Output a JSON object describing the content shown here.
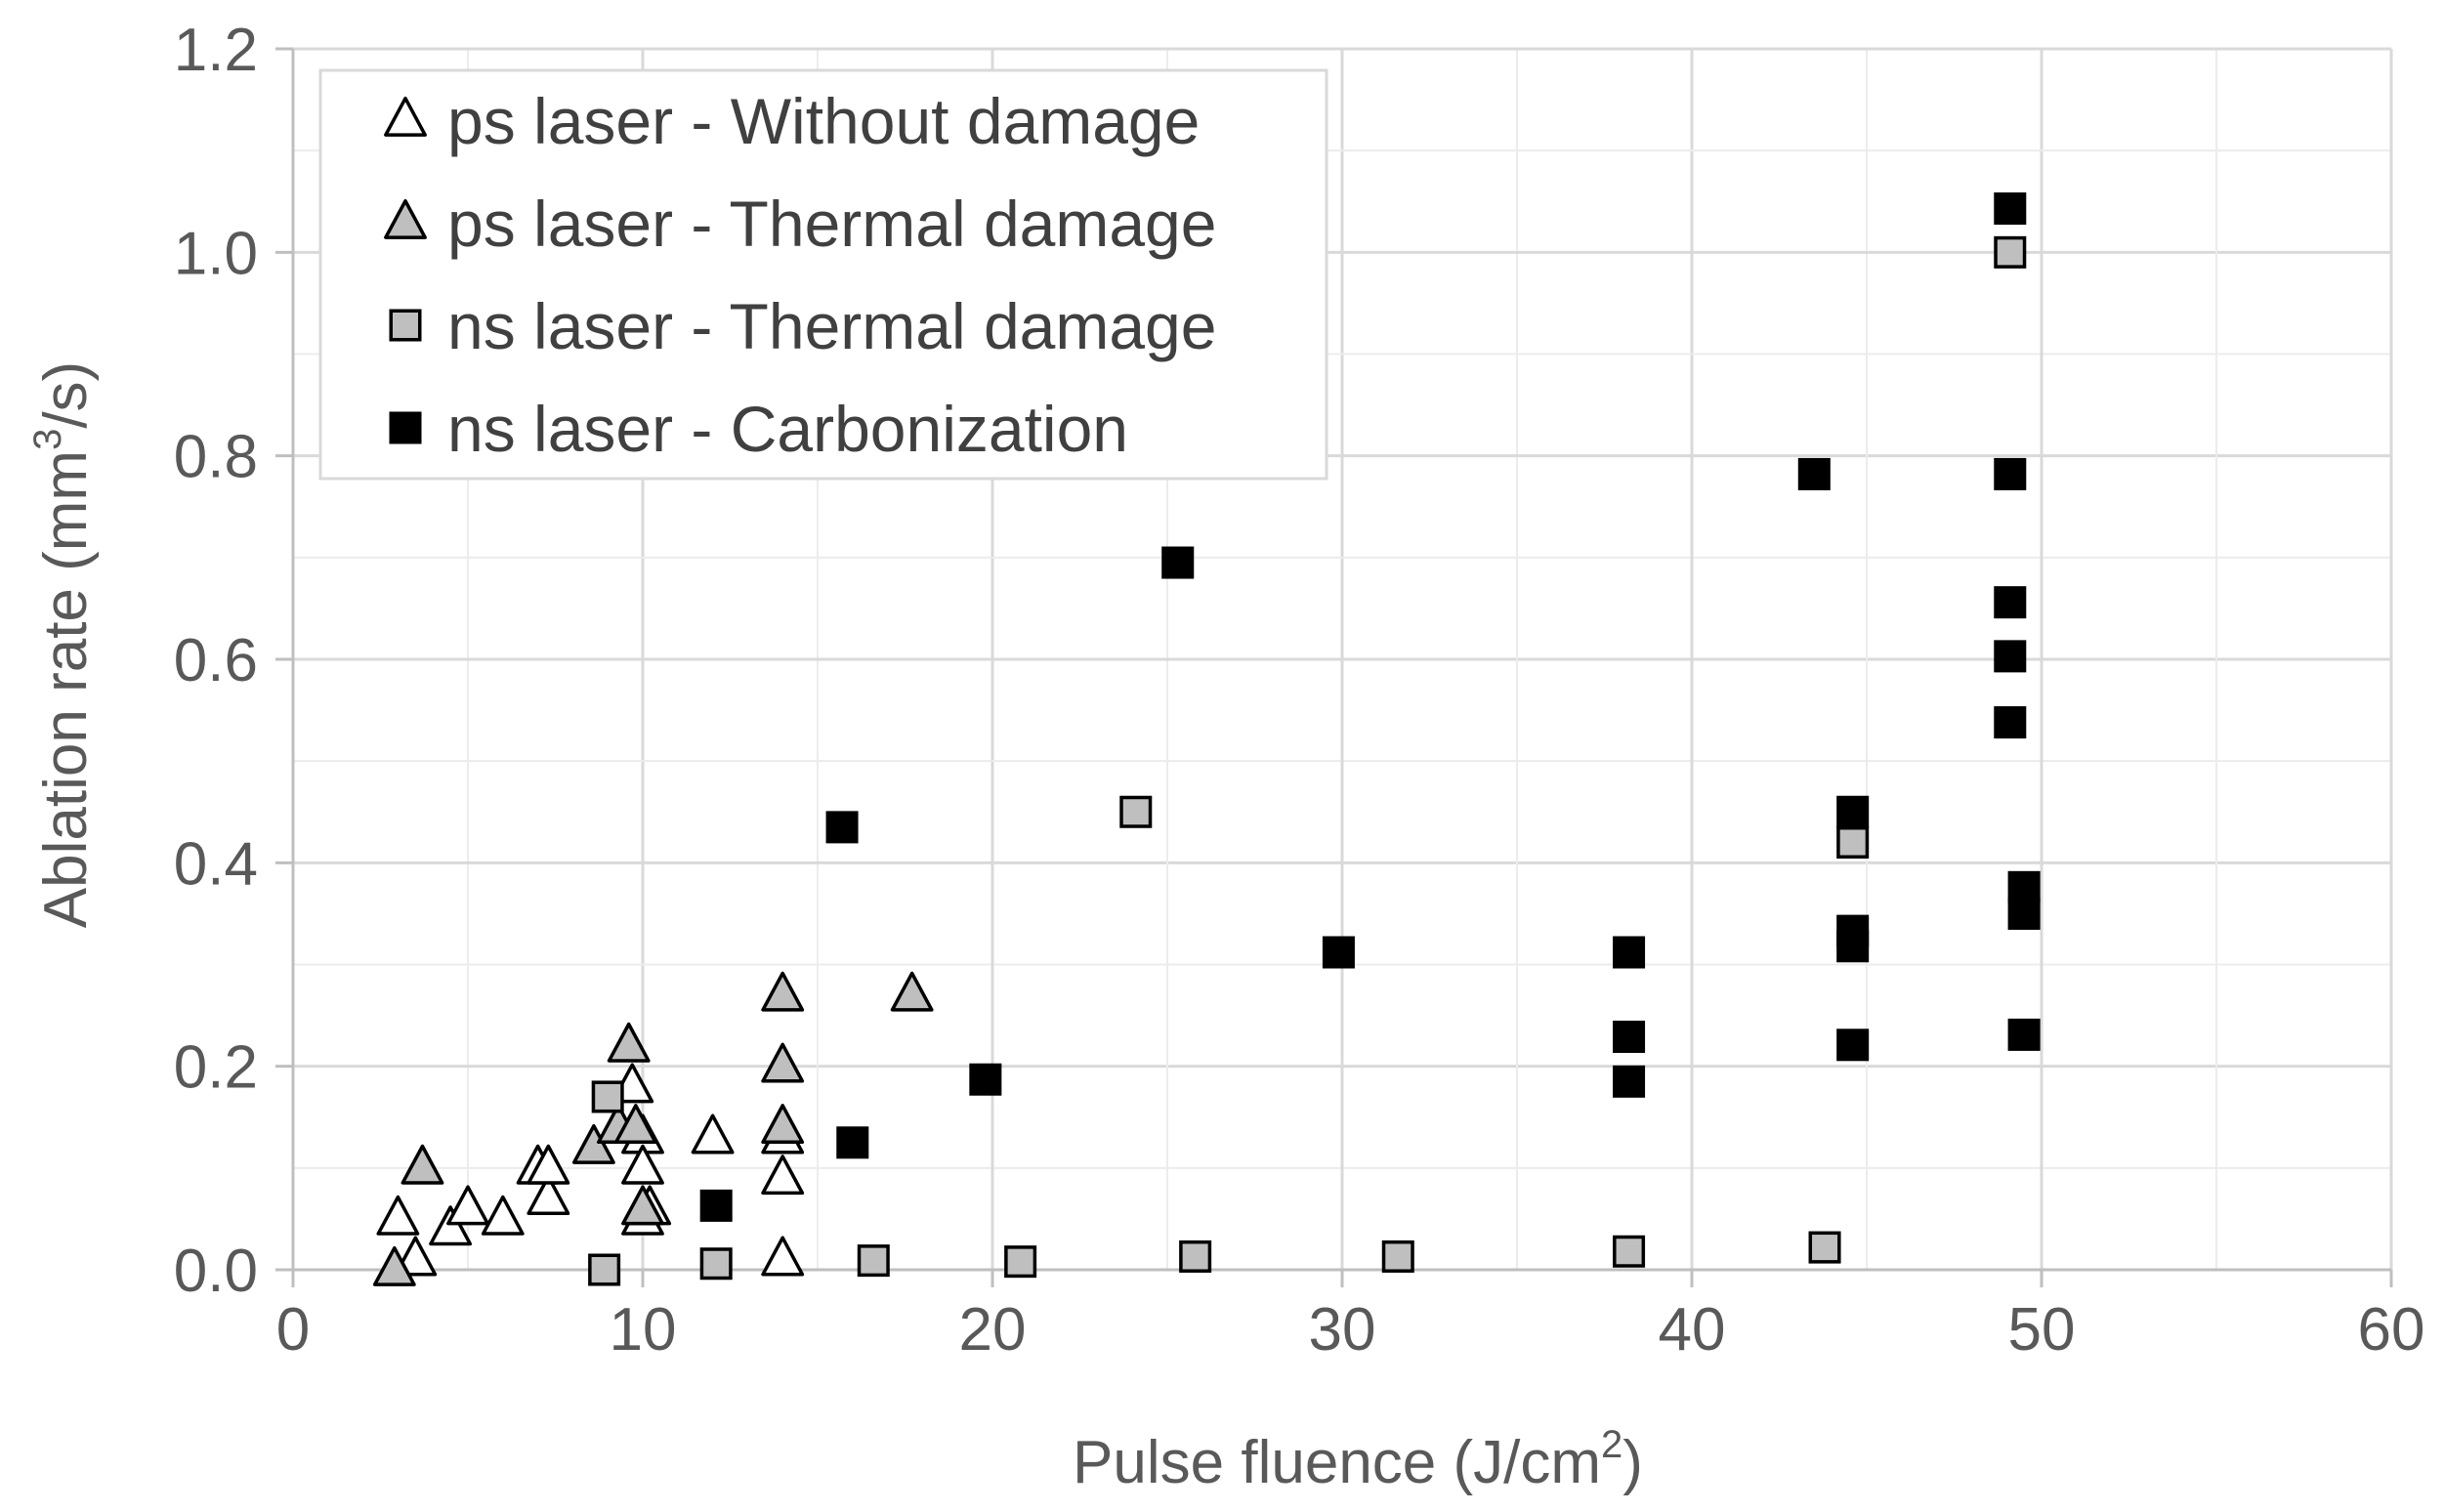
{
  "chart_data": {
    "type": "scatter",
    "xlabel": "Pulse fluence (J/cm2)",
    "xlabel_main": "Pulse fluence (J/cm",
    "xlabel_sup": "2",
    "xlabel_end": ")",
    "ylabel": "Ablation rate (mm3/s)",
    "ylabel_main": "Ablation rate (mm",
    "ylabel_sup": "3",
    "ylabel_end": "/s)",
    "xlim": [
      0,
      60
    ],
    "ylim": [
      0,
      1.2
    ],
    "x_ticks": [
      "0",
      "10",
      "20",
      "30",
      "40",
      "50",
      "60"
    ],
    "y_ticks": [
      "0.0",
      "0.2",
      "0.4",
      "0.6",
      "0.8",
      "1.0",
      "1.2"
    ],
    "grid": true,
    "legend_position": "top-left",
    "series": [
      {
        "name": "ps laser - Without damage",
        "marker": "triangle",
        "fill": "#ffffff",
        "stroke": "#000000",
        "points": [
          [
            3.0,
            0.05
          ],
          [
            3.5,
            0.01
          ],
          [
            4.5,
            0.04
          ],
          [
            5.0,
            0.06
          ],
          [
            6.0,
            0.05
          ],
          [
            7.0,
            0.1
          ],
          [
            7.3,
            0.07
          ],
          [
            7.3,
            0.1
          ],
          [
            9.7,
            0.18
          ],
          [
            10.0,
            0.13
          ],
          [
            10.0,
            0.1
          ],
          [
            10.0,
            0.05
          ],
          [
            10.2,
            0.06
          ],
          [
            12.0,
            0.13
          ],
          [
            14.0,
            0.01
          ],
          [
            14.0,
            0.09
          ],
          [
            14.0,
            0.13
          ]
        ]
      },
      {
        "name": "ps laser - Thermal damage",
        "marker": "triangle",
        "fill": "#bfbfbf",
        "stroke": "#000000",
        "points": [
          [
            2.9,
            0.0
          ],
          [
            3.7,
            0.1
          ],
          [
            8.6,
            0.12
          ],
          [
            9.3,
            0.14
          ],
          [
            9.6,
            0.22
          ],
          [
            9.8,
            0.14
          ],
          [
            10.0,
            0.06
          ],
          [
            14.0,
            0.27
          ],
          [
            14.0,
            0.2
          ],
          [
            14.0,
            0.14
          ],
          [
            17.7,
            0.27
          ]
        ]
      },
      {
        "name": "ns laser - Thermal damage",
        "marker": "square",
        "fill": "#bfbfbf",
        "stroke": "#000000",
        "points": [
          [
            8.9,
            0.0
          ],
          [
            9.0,
            0.17
          ],
          [
            12.1,
            0.006
          ],
          [
            16.6,
            0.009
          ],
          [
            20.8,
            0.008
          ],
          [
            24.1,
            0.45
          ],
          [
            25.8,
            0.013
          ],
          [
            31.6,
            0.013
          ],
          [
            38.2,
            0.018
          ],
          [
            43.8,
            0.022
          ],
          [
            44.6,
            0.42
          ],
          [
            49.1,
            1.0
          ]
        ]
      },
      {
        "name": "ns laser - Carbonization",
        "marker": "square",
        "fill": "#000000",
        "stroke": "#000000",
        "points": [
          [
            12.1,
            0.063
          ],
          [
            15.7,
            0.435
          ],
          [
            16.0,
            0.125
          ],
          [
            19.8,
            0.187
          ],
          [
            25.3,
            0.695
          ],
          [
            29.9,
            0.312
          ],
          [
            38.2,
            0.312
          ],
          [
            38.2,
            0.229
          ],
          [
            38.2,
            0.185
          ],
          [
            43.5,
            0.782
          ],
          [
            44.6,
            0.45
          ],
          [
            44.6,
            0.333
          ],
          [
            44.6,
            0.318
          ],
          [
            44.6,
            0.221
          ],
          [
            49.1,
            1.043
          ],
          [
            49.1,
            0.782
          ],
          [
            49.1,
            0.656
          ],
          [
            49.1,
            0.603
          ],
          [
            49.1,
            0.538
          ],
          [
            49.5,
            0.376
          ],
          [
            49.5,
            0.35
          ],
          [
            49.5,
            0.231
          ]
        ]
      }
    ]
  }
}
